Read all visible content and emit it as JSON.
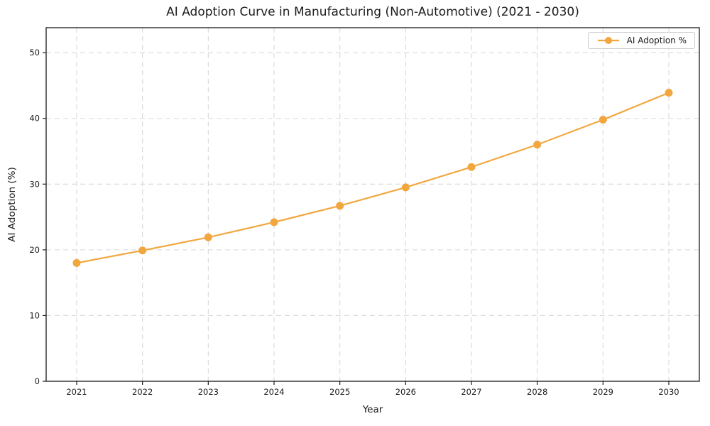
{
  "page": {
    "background": "#ffffff"
  },
  "chart_data": {
    "type": "line",
    "title": "AI Adoption Curve in Manufacturing (Non-Automotive) (2021 - 2030)",
    "xlabel": "Year",
    "ylabel": "AI Adoption (%)",
    "categories": [
      "2021",
      "2022",
      "2023",
      "2024",
      "2025",
      "2026",
      "2027",
      "2028",
      "2029",
      "2030"
    ],
    "series": [
      {
        "name": "AI Adoption %",
        "values": [
          18.0,
          19.9,
          21.9,
          24.2,
          26.7,
          29.5,
          32.6,
          36.0,
          39.8,
          43.9
        ],
        "color": "#F1A73E",
        "marker": "circle",
        "line_width": 2.2,
        "marker_radius": 5.5
      }
    ],
    "ylim": [
      0,
      53.8
    ],
    "yticks": [
      0,
      10,
      20,
      30,
      40,
      50
    ],
    "grid": {
      "show": true,
      "color": "#d8d8d8",
      "style": "dashed"
    },
    "legend": {
      "position": "upper-right",
      "label": "AI Adoption %"
    },
    "axis_color": "#1a1a1a",
    "text_color": "#1a1a1a"
  }
}
